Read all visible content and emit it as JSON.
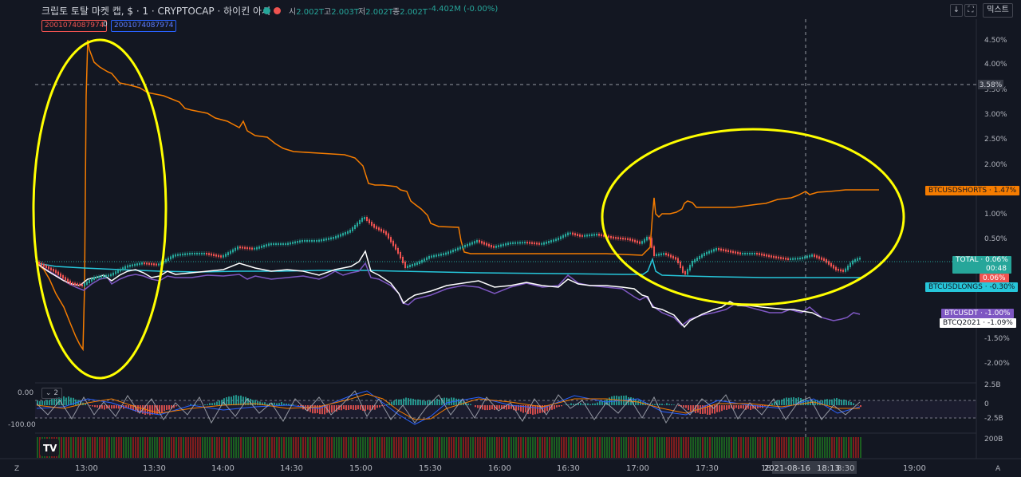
{
  "header": {
    "title": "크립토 토탈 마켓 캡, $ · 1 · CRYPTOCAP · 하이킨 아시",
    "ohlc": [
      {
        "k": "시",
        "v": "2.002T"
      },
      {
        "k": "고",
        "v": "2.003T"
      },
      {
        "k": "저",
        "v": "2.002T"
      },
      {
        "k": "종",
        "v": "2.002T"
      }
    ],
    "change": "-4.402M (-0.00%)",
    "mix_label": "믹스트",
    "input_a": "2001074087974",
    "input_mid": "0",
    "input_b": "2001074087974",
    "collapse_main": "5",
    "collapse_osc": "2",
    "down_arrow": "↓",
    "fullscreen": "⛶"
  },
  "price_axis": [
    "4.50%",
    "4.00%",
    "3.50%",
    "3.00%",
    "2.50%",
    "2.00%",
    "1.50%",
    "1.00%",
    "0.50%",
    "0.00%",
    "-1.00%",
    "-1.50%",
    "-2.00%"
  ],
  "crosshair_tag": "3.58%",
  "series_tags": [
    {
      "name": "BTCUSDSHORTS",
      "value": "1.47%",
      "color": "#f57c00"
    },
    {
      "name": "TOTAL",
      "value": "0.06%",
      "sub": "00:48",
      "color": "#26a69a"
    },
    {
      "name": "",
      "value": "0.06%",
      "color": "#ef5350"
    },
    {
      "name": "BTCUSDLONGS",
      "value": "-0.30%",
      "color": "#26c6da"
    },
    {
      "name": "BTCUSDT",
      "value": "-1.00%",
      "color": "#7e57c2"
    },
    {
      "name": "BTCQ2021",
      "value": "-1.09%",
      "color": "#ffffff"
    }
  ],
  "oscillator": {
    "left_top": "0.00",
    "left_bottom": "-100.00",
    "right": [
      "2.5B",
      "0",
      "-2.5B"
    ],
    "volume_right": "200B"
  },
  "time_axis": [
    "13:00",
    "13:30",
    "14:00",
    "14:30",
    "15:00",
    "15:30",
    "16:00",
    "16:30",
    "17:00",
    "17:30",
    "18",
    "8:30",
    "19:00"
  ],
  "crosshair_time": "2021-08-16",
  "crosshair_clock": "18:13",
  "corner": {
    "left": "Z",
    "right": "A"
  },
  "colors": {
    "bg": "#131722",
    "up": "#26a69a",
    "down": "#ef5350",
    "highlight": "#ffff00"
  }
}
